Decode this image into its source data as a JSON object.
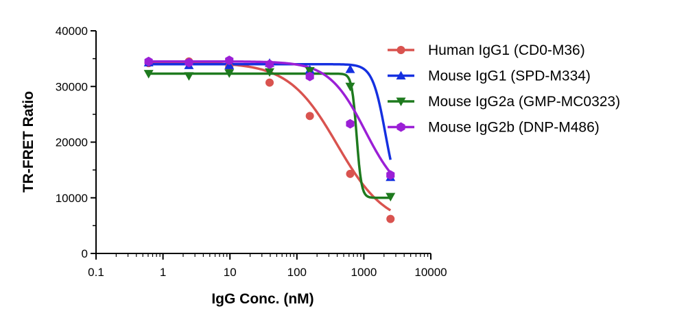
{
  "chart_data": {
    "type": "scatter",
    "title": "",
    "xlabel": "IgG Conc. (nM)",
    "ylabel": "TR-FRET Ratio",
    "xscale": "log",
    "xlim": [
      0.1,
      10000
    ],
    "ylim": [
      0,
      40000
    ],
    "xticks": [
      0.1,
      1,
      10,
      100,
      1000,
      10000
    ],
    "xtick_labels": [
      "0.1",
      "1",
      "10",
      "100",
      "1000",
      "10000"
    ],
    "yticks": [
      0,
      10000,
      20000,
      30000,
      40000
    ],
    "ytick_labels": [
      "0",
      "10000",
      "20000",
      "30000",
      "40000"
    ],
    "legend_position": "top-right",
    "grid": false,
    "series": [
      {
        "name": "Human IgG1 (CD0-M36)",
        "color": "#d9534f",
        "marker": "circle",
        "x": [
          0.61,
          2.44,
          9.77,
          39.1,
          156,
          625,
          2500
        ],
        "y": [
          34200,
          34500,
          33500,
          30700,
          24700,
          14300,
          6200
        ]
      },
      {
        "name": "Mouse IgG1 (SPD-M334)",
        "color": "#1530e0",
        "marker": "triangle-up",
        "x": [
          0.61,
          2.44,
          9.77,
          39.1,
          156,
          625,
          2500
        ],
        "y": [
          34300,
          33800,
          33800,
          34200,
          33000,
          33100,
          13700
        ]
      },
      {
        "name": "Mouse IgG2a (GMP-MC0323)",
        "color": "#1e7a1e",
        "marker": "triangle-down",
        "x": [
          0.61,
          2.44,
          9.77,
          39.1,
          156,
          625,
          2500
        ],
        "y": [
          32300,
          31900,
          32400,
          32600,
          32800,
          30000,
          10200
        ]
      },
      {
        "name": "Mouse IgG2b (DNP-M486)",
        "color": "#9b1fd6",
        "marker": "hexagon",
        "x": [
          0.61,
          2.44,
          9.77,
          39.1,
          156,
          625,
          2500
        ],
        "y": [
          34500,
          34300,
          34700,
          34000,
          31800,
          23300,
          14100
        ]
      }
    ],
    "curves": [
      {
        "series": "Human IgG1 (CD0-M36)",
        "top": 34300,
        "bottom": 4800,
        "ec50": 400,
        "hill": 1.2
      },
      {
        "series": "Mouse IgG1 (SPD-M334)",
        "top": 34000,
        "bottom": 9000,
        "ec50": 2100,
        "hill": 4.5
      },
      {
        "series": "Mouse IgG2a (GMP-MC0323)",
        "top": 32300,
        "bottom": 10000,
        "ec50": 780,
        "hill": 12
      },
      {
        "series": "Mouse IgG2b (DNP-M486)",
        "top": 34500,
        "bottom": 9500,
        "ec50": 1050,
        "hill": 1.6
      }
    ]
  }
}
